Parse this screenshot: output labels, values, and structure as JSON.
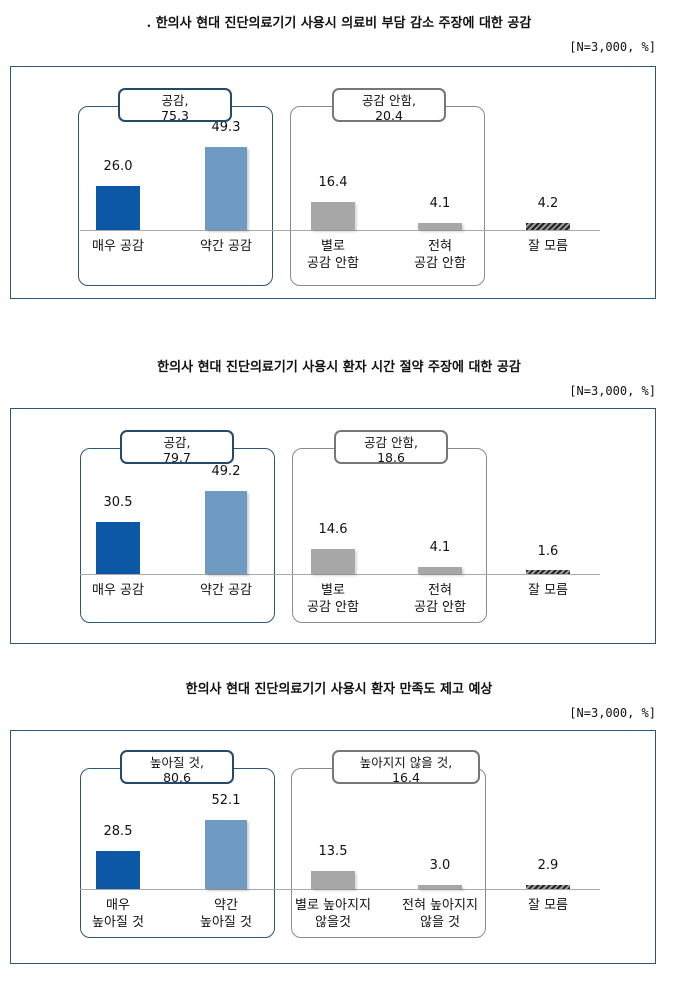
{
  "colors": {
    "strong": "#0d58a6",
    "moderate": "#6f9bc2",
    "gray": "#a7a7a7",
    "unknown": "#3a3a3a",
    "frame": "#2b5678"
  },
  "chart_data": [
    {
      "type": "bar",
      "title": ". 한의사 현대 진단의료기기 사용시 의료비 부담 감소 주장에 대한 공감",
      "unit_label": "[N=3,000, %]",
      "categories": [
        "매우 공감",
        "약간 공감",
        "별로\n공감 안함",
        "전혀\n공감 안함",
        "잘 모름"
      ],
      "values": [
        26.0,
        49.3,
        16.4,
        4.1,
        4.2
      ],
      "value_labels": [
        "26.0",
        "49.3",
        "16.4",
        "4.1",
        "4.2"
      ],
      "groups": [
        {
          "label": "공감,\n75.3",
          "members": [
            0,
            1
          ]
        },
        {
          "label": "공감 안함,\n20.4",
          "members": [
            2,
            3
          ]
        }
      ]
    },
    {
      "type": "bar",
      "title": "한의사 현대 진단의료기기 사용시 환자 시간 절약 주장에 대한 공감",
      "unit_label": "[N=3,000, %]",
      "categories": [
        "매우 공감",
        "약간 공감",
        "별로\n공감 안함",
        "전혀\n공감 안함",
        "잘 모름"
      ],
      "values": [
        30.5,
        49.2,
        14.6,
        4.1,
        1.6
      ],
      "value_labels": [
        "30.5",
        "49.2",
        "14.6",
        "4.1",
        "1.6"
      ],
      "groups": [
        {
          "label": "공감,\n79.7",
          "members": [
            0,
            1
          ]
        },
        {
          "label": "공감 안함,\n18.6",
          "members": [
            2,
            3
          ]
        }
      ]
    },
    {
      "type": "bar",
      "title": "한의사 현대 진단의료기기 사용시 환자 만족도 제고 예상",
      "unit_label": "[N=3,000, %]",
      "categories": [
        "매우\n높아질 것",
        "약간\n높아질 것",
        "별로 높아지지\n않을것",
        "전혀 높아지지\n않을 것",
        "잘 모름"
      ],
      "values": [
        28.5,
        52.1,
        13.5,
        3.0,
        2.9
      ],
      "value_labels": [
        "28.5",
        "52.1",
        "13.5",
        "3.0",
        "2.9"
      ],
      "groups": [
        {
          "label": "높아질 것,\n80.6",
          "members": [
            0,
            1
          ]
        },
        {
          "label": "높아지지 않을 것,\n16.4",
          "members": [
            2,
            3
          ]
        }
      ]
    }
  ]
}
